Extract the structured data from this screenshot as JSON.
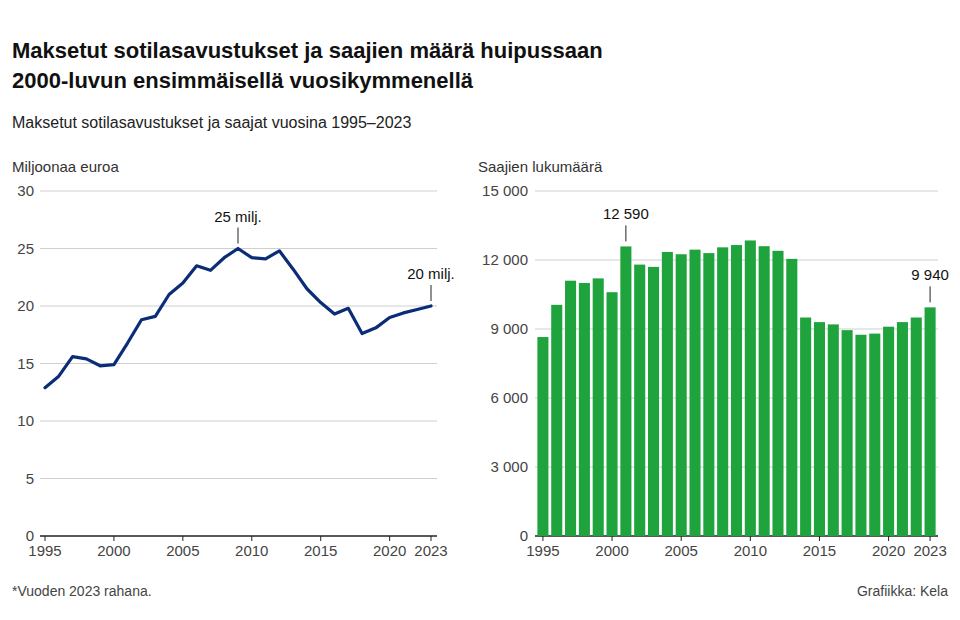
{
  "title": [
    "Maksetut sotilasavustukset ja saajien määrä huipussaan",
    "2000-luvun ensimmäisellä vuosikymmenellä"
  ],
  "subtitle": "Maksetut sotilasavustukset ja saajat vuosina 1995–2023",
  "note": "*Vuoden 2023 rahana.",
  "source": "Grafiikka: Kela",
  "chart_data": [
    {
      "type": "line",
      "y_label": "Miljoonaa euroa",
      "x": [
        1995,
        1996,
        1997,
        1998,
        1999,
        2000,
        2001,
        2002,
        2003,
        2004,
        2005,
        2006,
        2007,
        2008,
        2009,
        2010,
        2011,
        2012,
        2013,
        2014,
        2015,
        2016,
        2017,
        2018,
        2019,
        2020,
        2021,
        2022,
        2023
      ],
      "values": [
        12.9,
        13.9,
        15.6,
        15.4,
        14.8,
        14.9,
        16.8,
        18.8,
        19.1,
        21.0,
        22.0,
        23.5,
        23.1,
        24.2,
        25.0,
        24.2,
        24.1,
        24.8,
        23.2,
        21.5,
        20.3,
        19.3,
        19.8,
        17.6,
        18.1,
        19.0,
        19.4,
        19.7,
        20.0
      ],
      "value_labels": [
        null,
        null,
        null,
        null,
        null,
        null,
        null,
        null,
        null,
        null,
        null,
        null,
        null,
        null,
        "25 milj.",
        null,
        null,
        null,
        null,
        null,
        null,
        null,
        null,
        null,
        null,
        null,
        null,
        null,
        "20 milj."
      ],
      "color": "#0b2d78",
      "xlim": [
        1995,
        2023
      ],
      "xticks": [
        1995,
        2000,
        2005,
        2010,
        2015,
        2020,
        2023
      ],
      "ylim": [
        0,
        30
      ],
      "yticks": [
        0,
        5,
        10,
        15,
        20,
        25,
        30
      ],
      "grid": true
    },
    {
      "type": "bar",
      "y_label": "Saajien lukumäärä",
      "categories": [
        "1995",
        null,
        null,
        null,
        null,
        "2000",
        null,
        null,
        null,
        null,
        "2005",
        null,
        null,
        null,
        null,
        "2010",
        null,
        null,
        null,
        null,
        "2015",
        null,
        null,
        null,
        null,
        "2020",
        null,
        null,
        "2023"
      ],
      "values": [
        8650,
        10050,
        11100,
        11000,
        11200,
        10600,
        12590,
        11800,
        11700,
        12350,
        12250,
        12450,
        12300,
        12550,
        12650,
        12850,
        12600,
        12400,
        12050,
        9500,
        9300,
        9200,
        8950,
        8750,
        8800,
        9100,
        9300,
        9500,
        9940
      ],
      "value_labels": [
        null,
        null,
        null,
        null,
        null,
        null,
        "12 590",
        null,
        null,
        null,
        null,
        null,
        null,
        null,
        null,
        null,
        null,
        null,
        null,
        null,
        null,
        null,
        null,
        null,
        null,
        null,
        null,
        null,
        "9 940"
      ],
      "color": "#1fa33c",
      "ylim": [
        0,
        15000
      ],
      "yticks": [
        0,
        {
          "value": 3000,
          "label": "3 000"
        },
        {
          "value": 6000,
          "label": "6 000"
        },
        {
          "value": 9000,
          "label": "9 000"
        },
        {
          "value": 12000,
          "label": "12 000"
        },
        {
          "value": 15000,
          "label": "15 000"
        }
      ],
      "grid": true
    }
  ]
}
